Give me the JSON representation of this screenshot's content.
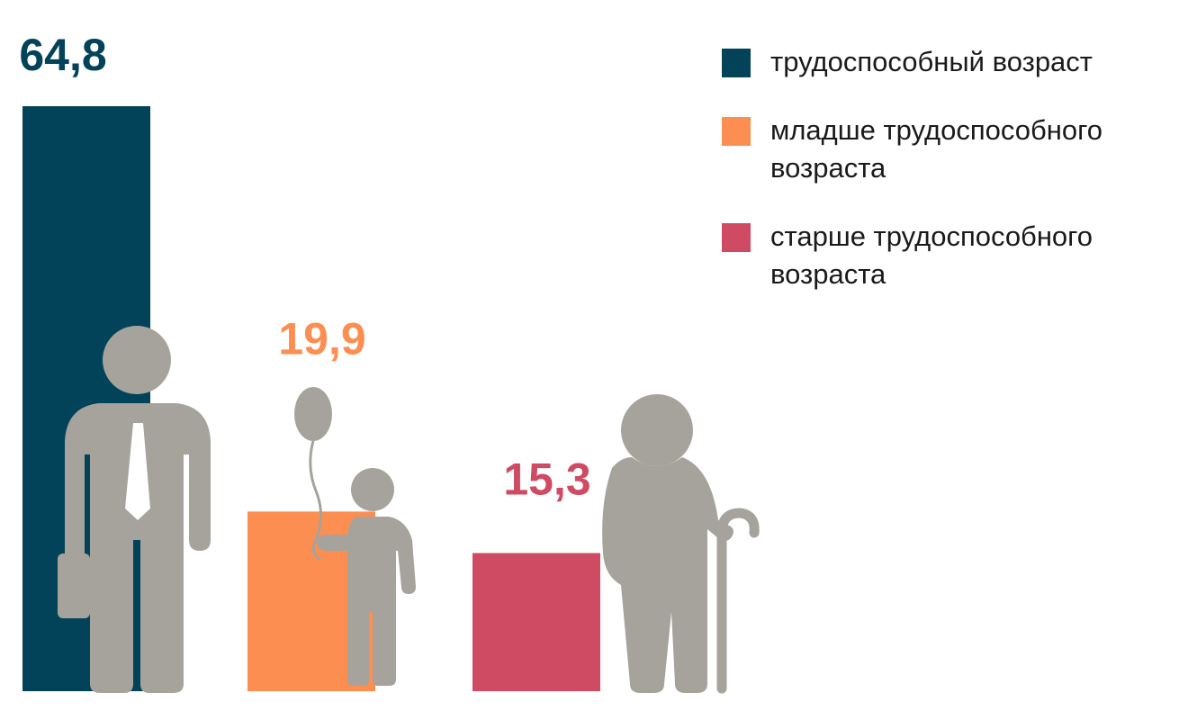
{
  "chart_data": {
    "type": "bar",
    "title": "",
    "xlabel": "",
    "ylabel": "",
    "ylim": [
      0,
      64.8
    ],
    "categories": [
      "трудоспособный возраст",
      "младше трудоспособного возраста",
      "старше трудоспособного возраста"
    ],
    "values": [
      64.8,
      19.9,
      15.3
    ],
    "value_labels": [
      "64,8",
      "19,9",
      "15,3"
    ],
    "colors": [
      "#02435a",
      "#fd8e52",
      "#cf4b63"
    ],
    "legend_position": "top-right",
    "grid": false
  },
  "icons": [
    "man-with-briefcase-icon",
    "child-with-balloon-icon",
    "elderly-person-with-cane-icon"
  ],
  "figure_color": "#a5a39b"
}
